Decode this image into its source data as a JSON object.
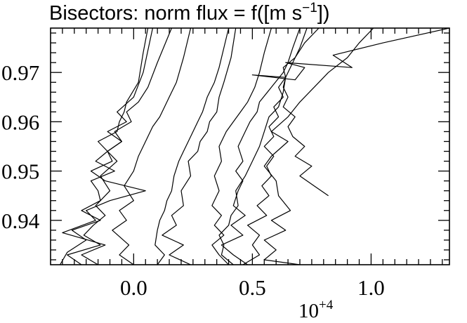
{
  "chart_data": {
    "type": "line",
    "title": "Bisectors: norm flux = f([m s",
    "title_superscript": "−1",
    "title_end": "])",
    "xlabel": "",
    "ylabel": "",
    "x_multiplier": "10",
    "x_multiplier_exponent": "+4",
    "xlim": [
      -0.35,
      1.33
    ],
    "ylim": [
      0.931,
      0.979
    ],
    "x_ticks": [
      0.0,
      0.5,
      1.0
    ],
    "x_tick_labels": [
      "0.0",
      "0.5",
      "1.0"
    ],
    "y_ticks": [
      0.94,
      0.95,
      0.96,
      0.97
    ],
    "y_tick_labels": [
      "0.94",
      "0.95",
      "0.96",
      "0.97"
    ],
    "grid": false,
    "series": [
      {
        "x": [
          -0.31,
          -0.28,
          -0.2,
          -0.26,
          -0.14,
          -0.22,
          -0.14,
          -0.15,
          -0.18,
          -0.08,
          -0.16,
          -0.11,
          -0.15,
          -0.07,
          -0.06,
          -0.04,
          -0.03,
          0.02,
          0.04,
          0.06
        ],
        "y": [
          0.931,
          0.9335,
          0.936,
          0.938,
          0.94,
          0.942,
          0.944,
          0.946,
          0.948,
          0.95,
          0.952,
          0.954,
          0.956,
          0.958,
          0.96,
          0.962,
          0.964,
          0.968,
          0.974,
          0.979
        ]
      },
      {
        "x": [
          -0.15,
          -0.22,
          -0.12,
          -0.3,
          -0.16,
          -0.2,
          -0.1,
          0.05,
          -0.12,
          -0.18,
          -0.09,
          -0.11,
          -0.05,
          -0.11,
          -0.03,
          -0.07,
          0.0,
          0.04,
          0.08
        ],
        "y": [
          0.931,
          0.933,
          0.935,
          0.9375,
          0.94,
          0.942,
          0.944,
          0.946,
          0.948,
          0.95,
          0.952,
          0.954,
          0.956,
          0.958,
          0.96,
          0.962,
          0.965,
          0.97,
          0.979
        ]
      },
      {
        "x": [
          -0.22,
          -0.28,
          -0.14,
          -0.21,
          -0.17,
          -0.12,
          -0.16,
          -0.1,
          -0.14,
          -0.07,
          -0.11,
          -0.05,
          -0.08,
          -0.01,
          -0.03,
          0.02,
          0.06,
          0.1,
          0.16
        ],
        "y": [
          0.931,
          0.933,
          0.935,
          0.937,
          0.939,
          0.941,
          0.943,
          0.946,
          0.949,
          0.952,
          0.954,
          0.956,
          0.958,
          0.96,
          0.962,
          0.964,
          0.967,
          0.972,
          0.979
        ]
      },
      {
        "x": [
          0.0,
          -0.06,
          -0.02,
          -0.09,
          -0.03,
          -0.06,
          0.0,
          -0.04,
          0.0,
          0.02,
          0.04,
          0.06,
          0.08,
          0.11,
          0.13,
          0.15,
          0.18,
          0.21,
          0.24
        ],
        "y": [
          0.931,
          0.933,
          0.935,
          0.938,
          0.94,
          0.942,
          0.944,
          0.947,
          0.95,
          0.953,
          0.955,
          0.957,
          0.959,
          0.961,
          0.963,
          0.965,
          0.968,
          0.973,
          0.979
        ]
      },
      {
        "x": [
          0.1,
          0.13,
          0.09,
          0.1,
          0.11,
          0.13,
          0.14,
          0.16,
          0.17,
          0.19,
          0.21,
          0.23,
          0.25,
          0.27,
          0.29,
          0.31,
          0.34,
          0.36,
          0.38,
          0.4
        ],
        "y": [
          0.931,
          0.933,
          0.935,
          0.938,
          0.94,
          0.942,
          0.944,
          0.946,
          0.949,
          0.952,
          0.954,
          0.956,
          0.958,
          0.96,
          0.962,
          0.965,
          0.968,
          0.971,
          0.975,
          0.979
        ]
      },
      {
        "x": [
          0.24,
          0.15,
          0.21,
          0.12,
          0.18,
          0.16,
          0.21,
          0.2,
          0.24,
          0.23,
          0.27,
          0.28,
          0.31,
          0.32,
          0.35,
          0.36,
          0.38,
          0.41,
          0.43
        ],
        "y": [
          0.931,
          0.933,
          0.935,
          0.937,
          0.939,
          0.941,
          0.943,
          0.946,
          0.949,
          0.952,
          0.954,
          0.956,
          0.958,
          0.96,
          0.962,
          0.965,
          0.968,
          0.973,
          0.979
        ]
      },
      {
        "x": [
          0.4,
          0.36,
          0.33,
          0.38,
          0.34,
          0.37,
          0.33,
          0.36,
          0.34,
          0.37,
          0.36,
          0.39,
          0.42,
          0.45,
          0.48,
          0.51,
          0.53,
          0.55,
          0.58
        ],
        "y": [
          0.931,
          0.933,
          0.935,
          0.937,
          0.939,
          0.941,
          0.943,
          0.946,
          0.949,
          0.952,
          0.955,
          0.958,
          0.96,
          0.962,
          0.964,
          0.967,
          0.97,
          0.974,
          0.979
        ]
      },
      {
        "x": [
          0.48,
          0.42,
          0.37,
          0.46,
          0.41,
          0.47,
          0.42,
          0.44,
          0.46,
          0.43,
          0.46,
          0.44,
          0.47,
          0.49,
          0.52,
          0.53,
          0.58,
          0.63,
          0.65,
          0.67,
          0.7
        ],
        "y": [
          0.931,
          0.933,
          0.935,
          0.937,
          0.939,
          0.941,
          0.943,
          0.946,
          0.948,
          0.95,
          0.952,
          0.955,
          0.958,
          0.96,
          0.962,
          0.964,
          0.967,
          0.97,
          0.972,
          0.975,
          0.979
        ]
      },
      {
        "x": [
          0.42,
          0.37,
          0.38,
          0.36,
          0.4,
          0.41,
          0.44,
          0.43,
          0.47,
          0.5,
          0.53,
          0.55,
          0.57,
          0.61,
          0.63,
          0.64,
          0.67,
          0.7,
          0.73
        ],
        "y": [
          0.931,
          0.933,
          0.935,
          0.937,
          0.939,
          0.941,
          0.943,
          0.946,
          0.949,
          0.952,
          0.955,
          0.958,
          0.961,
          0.963,
          0.966,
          0.969,
          0.972,
          0.975,
          0.979
        ]
      },
      {
        "x": [
          0.46,
          0.53,
          0.5,
          0.53,
          0.48,
          0.56,
          0.52,
          0.57,
          0.54,
          0.58,
          0.56,
          0.59,
          0.55,
          0.59,
          0.57,
          0.61,
          0.59,
          0.63,
          0.61,
          0.64,
          0.63,
          0.68,
          0.72,
          0.78
        ],
        "y": [
          0.931,
          0.933,
          0.935,
          0.937,
          0.939,
          0.941,
          0.943,
          0.945,
          0.947,
          0.949,
          0.951,
          0.953,
          0.955,
          0.957,
          0.959,
          0.961,
          0.963,
          0.965,
          0.967,
          0.969,
          0.971,
          0.973,
          0.976,
          0.979
        ]
      },
      {
        "x": [
          0.7,
          0.55,
          0.6,
          0.55,
          0.64,
          0.58,
          0.66,
          0.61,
          0.6,
          0.55,
          0.58,
          0.65,
          0.58,
          0.65,
          0.7,
          0.76,
          0.82,
          0.9,
          0.95,
          1.01
        ],
        "y": [
          0.931,
          0.932,
          0.934,
          0.936,
          0.938,
          0.94,
          0.942,
          0.945,
          0.948,
          0.951,
          0.953,
          0.956,
          0.958,
          0.961,
          0.964,
          0.967,
          0.97,
          0.973,
          0.976,
          0.979
        ]
      },
      {
        "x": [
          0.82,
          0.76,
          0.7,
          0.75,
          0.68,
          0.72,
          0.67,
          0.65,
          0.68,
          0.63,
          0.65,
          0.63,
          0.64,
          0.5,
          0.68,
          0.72,
          0.64,
          0.92,
          0.84,
          1.05,
          1.33
        ],
        "y": [
          0.945,
          0.947,
          0.949,
          0.951,
          0.953,
          0.955,
          0.957,
          0.959,
          0.961,
          0.963,
          0.965,
          0.967,
          0.969,
          0.9695,
          0.9685,
          0.971,
          0.972,
          0.971,
          0.9735,
          0.976,
          0.979
        ]
      }
    ]
  }
}
